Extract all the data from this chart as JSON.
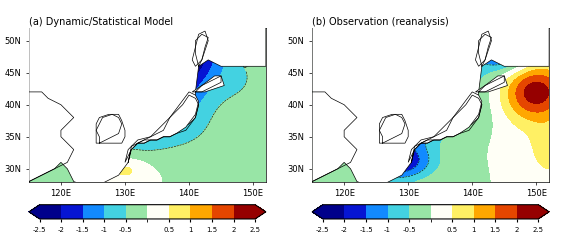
{
  "title_a": "(a) Dynamic/Statistical Model",
  "title_b": "(b) Observation (reanalysis)",
  "lon_range": [
    115,
    152
  ],
  "lat_range": [
    28,
    52
  ],
  "xticks": [
    120,
    130,
    140,
    150
  ],
  "yticks": [
    30,
    35,
    40,
    45,
    50
  ],
  "levels": [
    -2.5,
    -2.0,
    -1.5,
    -1.0,
    -0.5,
    0.0,
    0.5,
    1.0,
    1.5,
    2.0,
    2.5
  ],
  "colorbar_ticks": [
    -2.5,
    -2,
    -1.5,
    -1,
    -0.5,
    0.5,
    1,
    1.5,
    2,
    2.5
  ],
  "colorbar_labels": [
    "-2.5",
    "-2",
    "-1.5",
    "-1",
    "-0.5",
    "0.5",
    "1",
    "1.5",
    "2",
    "2.5"
  ],
  "figsize": [
    5.78,
    2.38
  ],
  "dpi": 100
}
